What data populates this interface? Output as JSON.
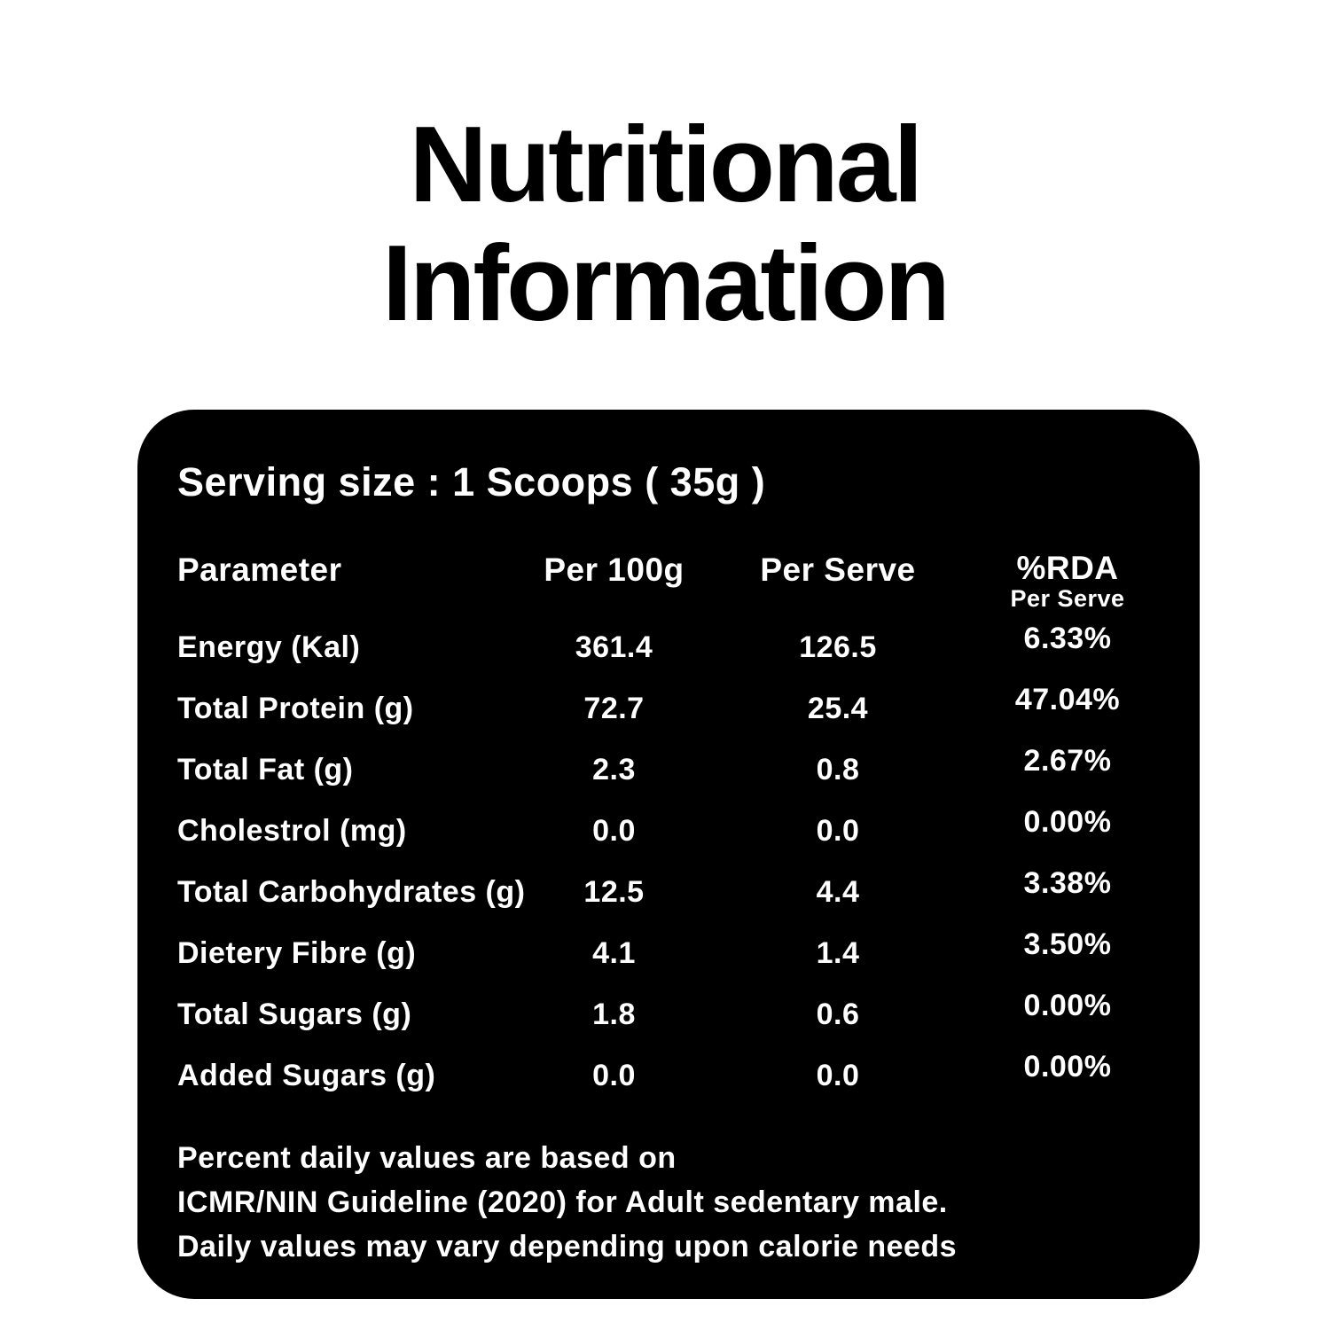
{
  "title": {
    "line1": "Nutritional",
    "line2": "Information"
  },
  "card": {
    "serving_label": "Serving size :",
    "serving_value": "1 Scoops ( 35g )",
    "table": {
      "headers": {
        "parameter": "Parameter",
        "per_100g": "Per 100g",
        "per_serve": "Per Serve",
        "rda": "%RDA",
        "rda_sub": "Per Serve"
      },
      "rows": [
        {
          "parameter": "Energy (Kal)",
          "per_100g": "361.4",
          "per_serve": "126.5",
          "rda": "6.33%"
        },
        {
          "parameter": "Total Protein (g)",
          "per_100g": "72.7",
          "per_serve": "25.4",
          "rda": "47.04%"
        },
        {
          "parameter": "Total Fat (g)",
          "per_100g": "2.3",
          "per_serve": "0.8",
          "rda": "2.67%"
        },
        {
          "parameter": "Cholestrol (mg)",
          "per_100g": "0.0",
          "per_serve": "0.0",
          "rda": "0.00%"
        },
        {
          "parameter": "Total Carbohydrates (g)",
          "per_100g": "12.5",
          "per_serve": "4.4",
          "rda": "3.38%"
        },
        {
          "parameter": "Dietery Fibre (g)",
          "per_100g": "4.1",
          "per_serve": "1.4",
          "rda": "3.50%"
        },
        {
          "parameter": "Total Sugars (g)",
          "per_100g": "1.8",
          "per_serve": "0.6",
          "rda": "0.00%"
        },
        {
          "parameter": "Added Sugars (g)",
          "per_100g": "0.0",
          "per_serve": "0.0",
          "rda": "0.00%"
        }
      ]
    },
    "footnote_lines": [
      "Percent daily values are based on",
      "ICMR/NIN Guideline (2020) for Adult sedentary male.",
      "Daily values may vary depending upon calorie needs"
    ]
  },
  "colors": {
    "page_bg": "#ffffff",
    "title_text": "#000000",
    "card_bg": "#000000",
    "card_text": "#ffffff"
  }
}
